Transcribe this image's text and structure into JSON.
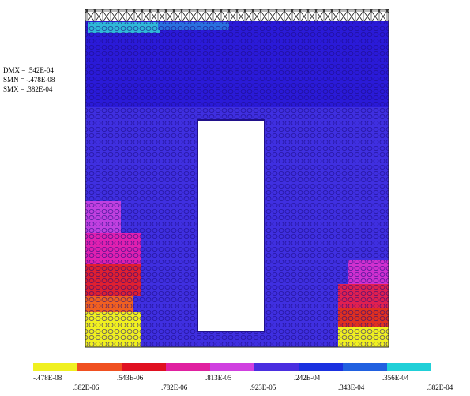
{
  "stats": {
    "dmx": "DMX = .542E-04",
    "smn": "SMN = -.478E-08",
    "smx": "SMX = .382E-04"
  },
  "legend": {
    "labels": [
      "-.478E-08",
      ".382E-06",
      ".543E-06",
      ".782E-06",
      ".813E-05",
      ".923E-05",
      ".242E-04",
      ".343E-04",
      ".356E-04",
      ".382E-04"
    ]
  }
}
